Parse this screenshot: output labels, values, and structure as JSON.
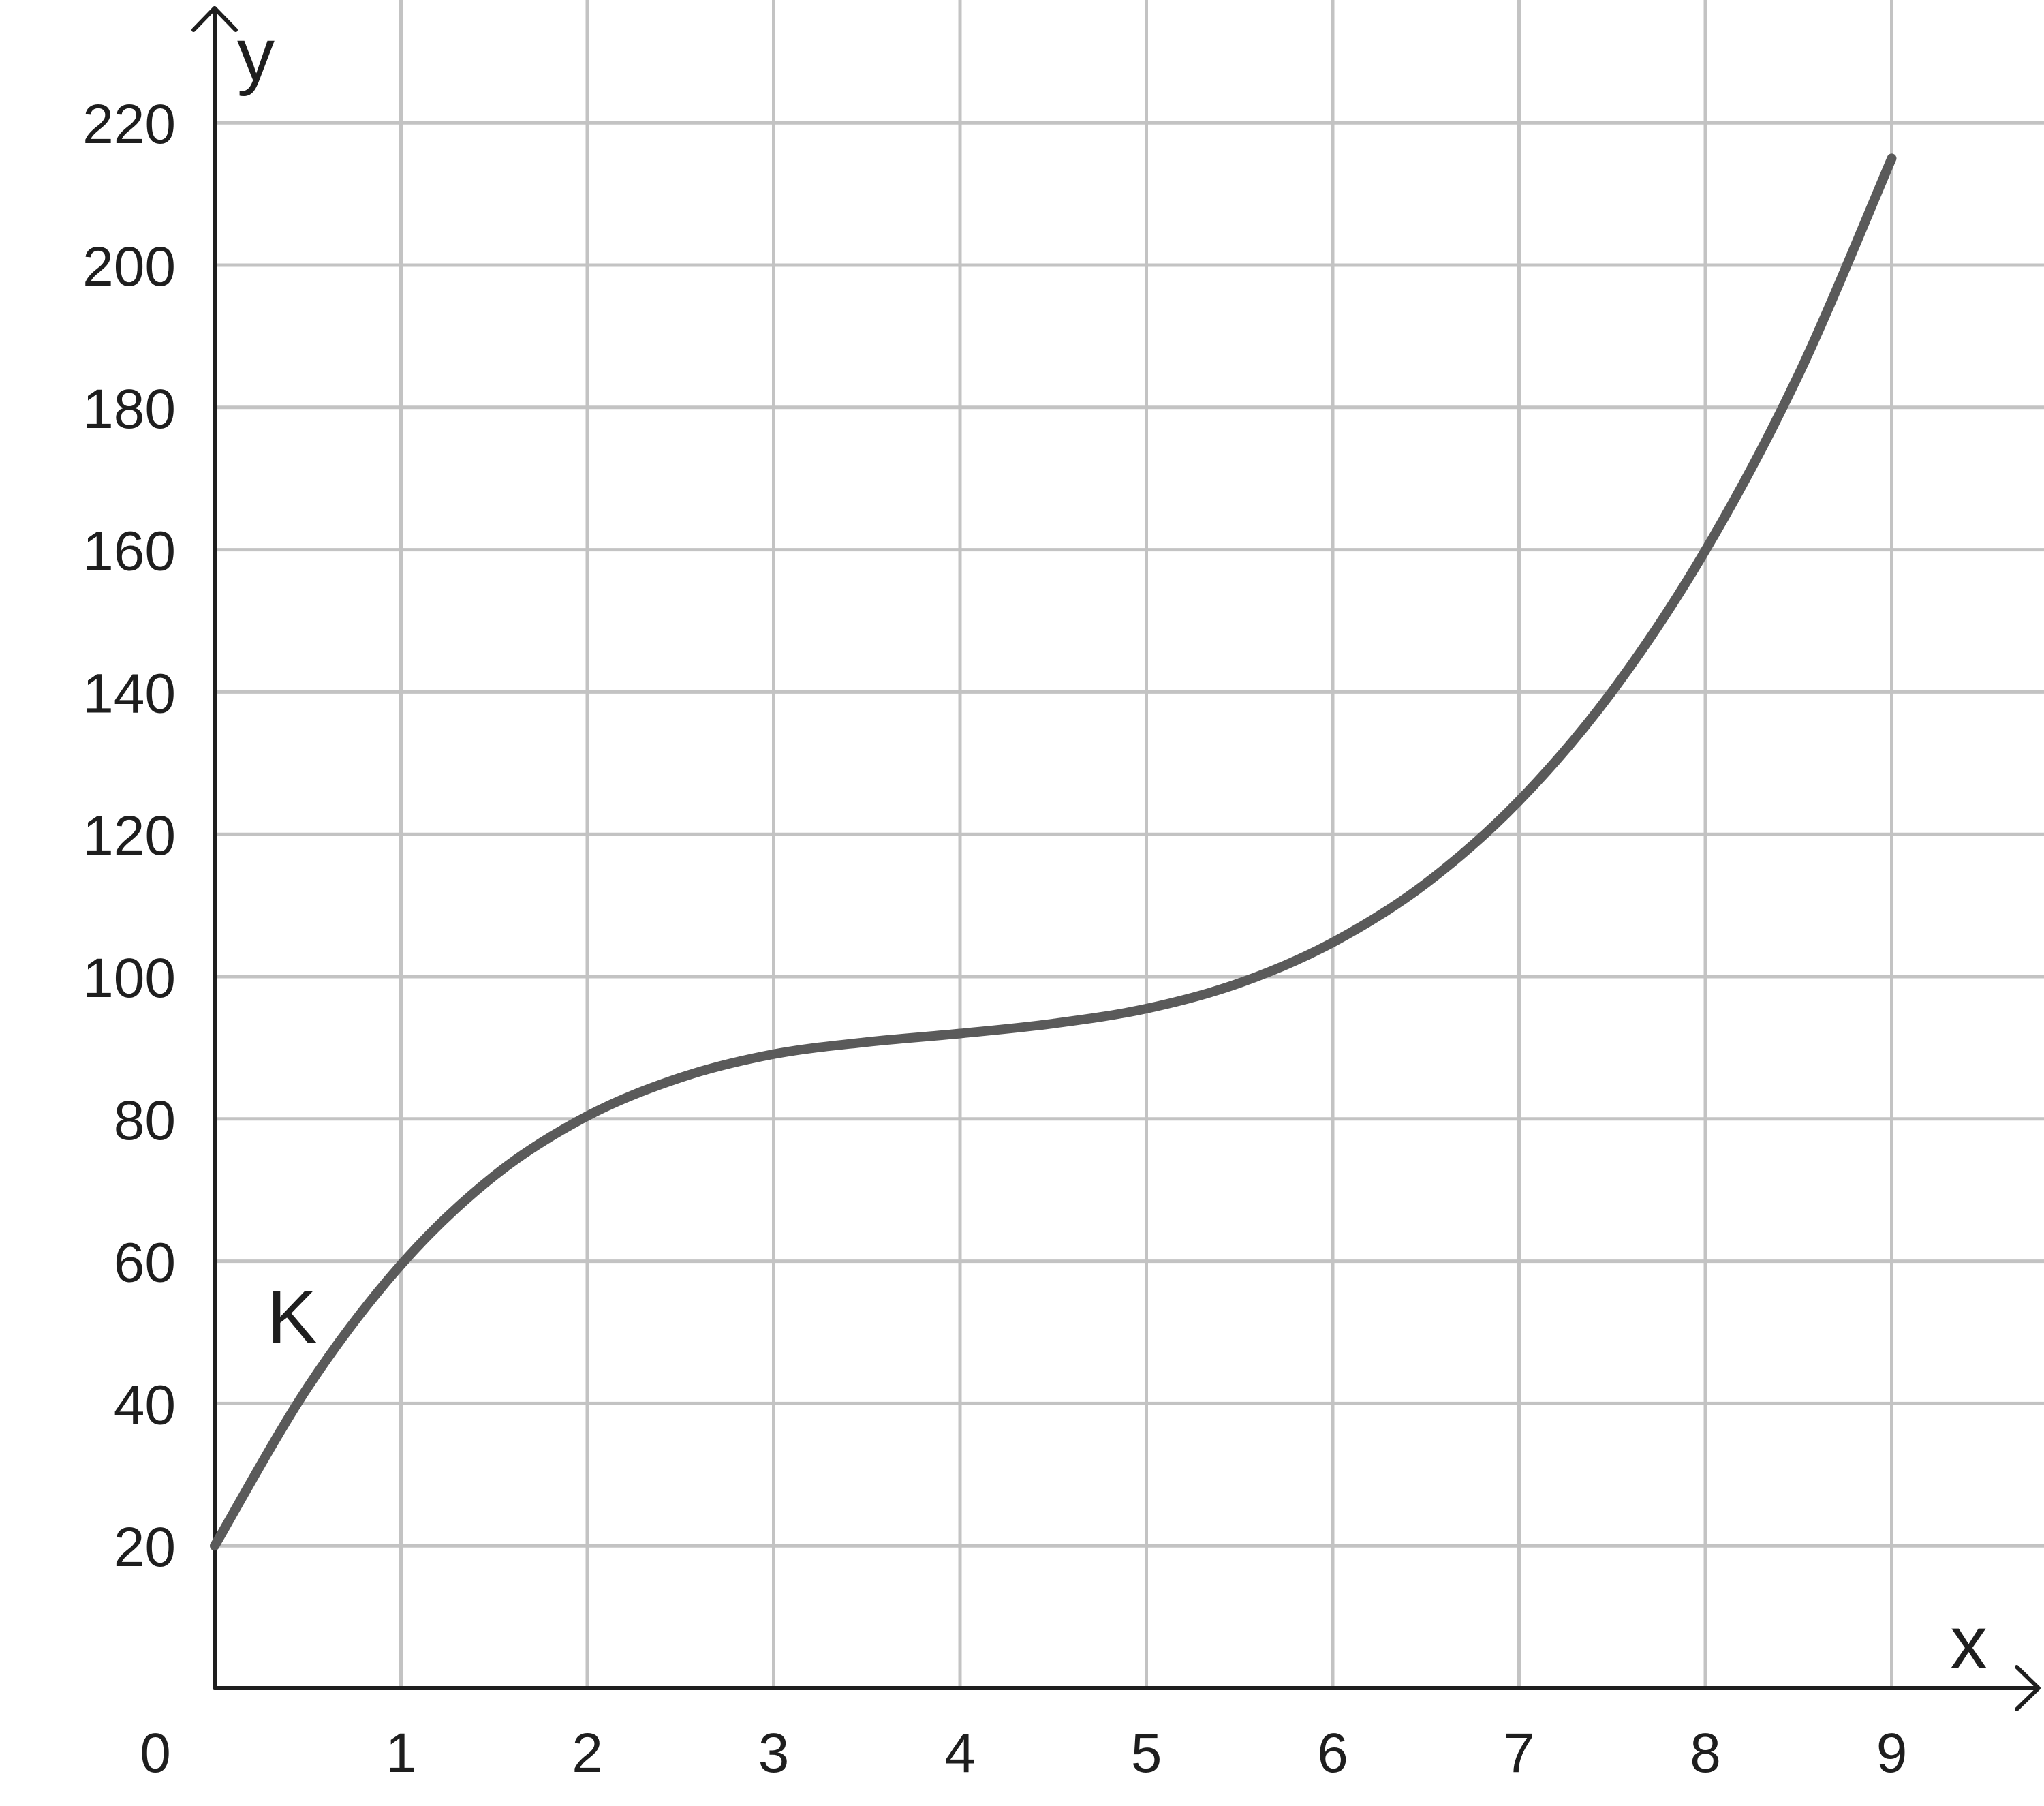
{
  "chart_data": {
    "type": "line",
    "xlabel": "x",
    "ylabel": "y",
    "xlim": [
      0,
      9.7
    ],
    "ylim": [
      0,
      237
    ],
    "x_ticks": [
      1,
      2,
      3,
      4,
      5,
      6,
      7,
      8,
      9
    ],
    "y_ticks": [
      20,
      40,
      60,
      80,
      100,
      120,
      140,
      160,
      180,
      200,
      220
    ],
    "origin_label": "0",
    "grid": true,
    "colors": {
      "curve": "#5a5a5a",
      "grid": "#c3c3c3",
      "axis": "#1e1e1e"
    },
    "series": [
      {
        "name": "K",
        "x": [
          0,
          0.5,
          1,
          1.5,
          2,
          2.5,
          3,
          3.5,
          4,
          4.5,
          5,
          5.5,
          6,
          6.5,
          7,
          7.5,
          8,
          8.5,
          9
        ],
        "y": [
          20,
          42.3,
          59.5,
          72.0,
          80.4,
          85.8,
          89.1,
          90.8,
          92.0,
          93.4,
          95.5,
          99.1,
          104.8,
          113.1,
          124.7,
          140.1,
          159.9,
          184.6,
          215.0
        ]
      }
    ]
  }
}
